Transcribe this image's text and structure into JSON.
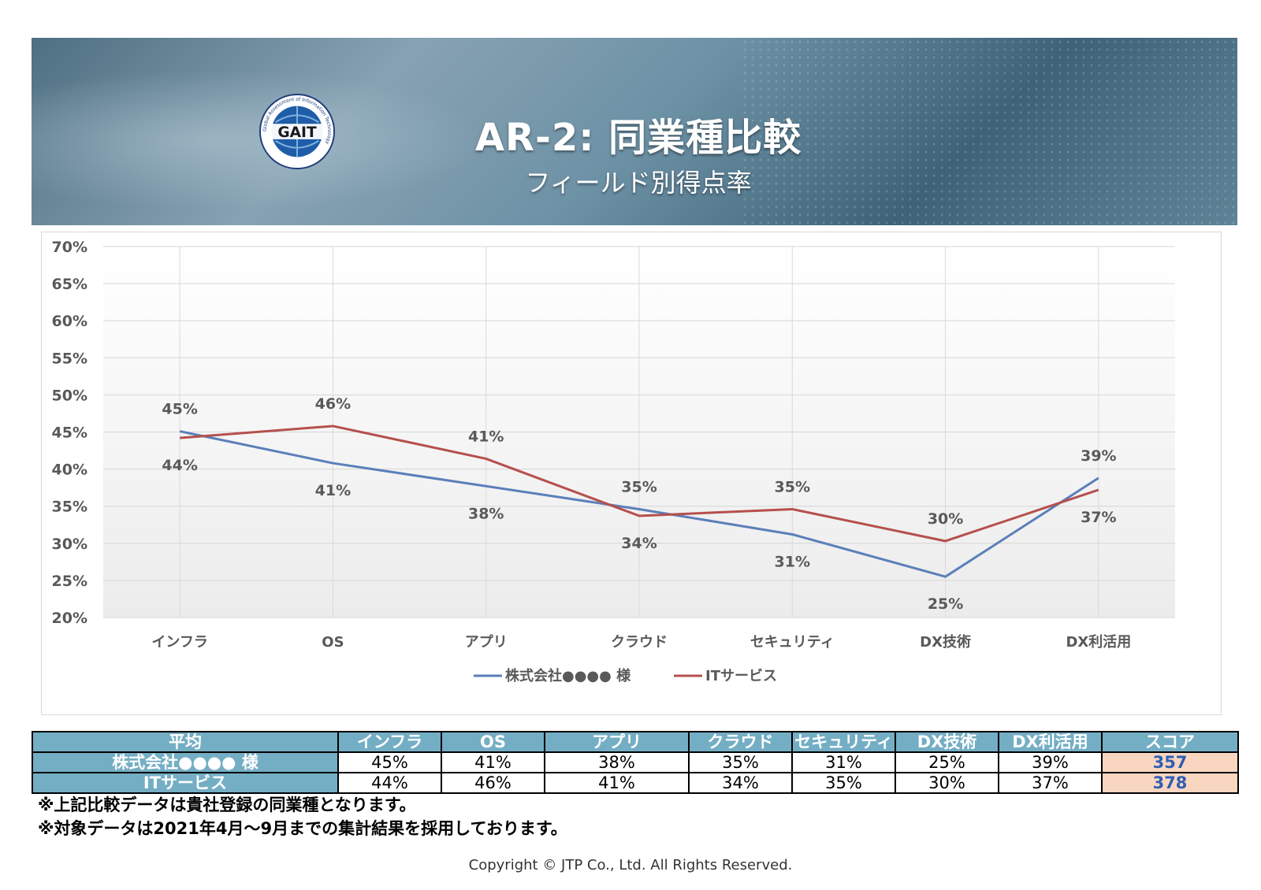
{
  "header": {
    "title": "AR-2: 同業種比較",
    "subtitle": "フィールド別得点率",
    "logo": {
      "ring_text": "Global Assessment of Information Technology",
      "mark": "GAIT"
    }
  },
  "chart_data": {
    "type": "line",
    "categories": [
      "インフラ",
      "OS",
      "アプリ",
      "クラウド",
      "セキュリティ",
      "DX技術",
      "DX利活用"
    ],
    "series": [
      {
        "name": "株式会社●●●● 様",
        "color": "#5b7fba",
        "values": [
          45,
          41,
          38,
          35,
          31,
          25,
          39
        ],
        "labels": [
          "45%",
          "41%",
          "38%",
          "35%",
          "31%",
          "25%",
          "39%"
        ],
        "plot_values": [
          45.1,
          40.8,
          37.7,
          34.6,
          31.2,
          25.5,
          38.8
        ]
      },
      {
        "name": "ITサービス",
        "color": "#b5504d",
        "values": [
          44,
          46,
          41,
          34,
          35,
          30,
          37
        ],
        "labels": [
          "44%",
          "46%",
          "41%",
          "34%",
          "35%",
          "30%",
          "37%"
        ],
        "plot_values": [
          44.2,
          45.8,
          41.4,
          33.7,
          34.6,
          30.3,
          37.2
        ]
      }
    ],
    "yticks": [
      "20%",
      "25%",
      "30%",
      "35%",
      "40%",
      "45%",
      "50%",
      "55%",
      "60%",
      "65%",
      "70%"
    ],
    "ylim": [
      20,
      70
    ],
    "grid": true,
    "legend": "bottom"
  },
  "table": {
    "headers": [
      "平均",
      "インフラ",
      "OS",
      "アプリ",
      "クラウド",
      "セキュリティ",
      "DX技術",
      "DX利活用",
      "スコア"
    ],
    "rows": [
      {
        "name": "株式会社●●●● 様",
        "cells": [
          "45%",
          "41%",
          "38%",
          "35%",
          "31%",
          "25%",
          "39%"
        ],
        "score": "357"
      },
      {
        "name": "ITサービス",
        "cells": [
          "44%",
          "46%",
          "41%",
          "34%",
          "35%",
          "30%",
          "37%"
        ],
        "score": "378"
      }
    ]
  },
  "notes": [
    "※上記比較データは貴社登録の同業種となります。",
    "※対象データは2021年4月～9月までの集計結果を採用しております。"
  ],
  "copyright": "Copyright © JTP Co., Ltd. All Rights Reserved."
}
